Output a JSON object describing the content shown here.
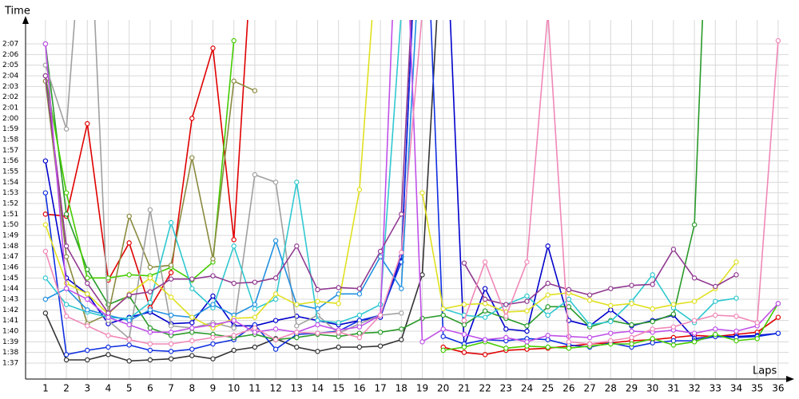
{
  "chart_data": {
    "type": "line",
    "y_label": "Time",
    "x_label": "Laps",
    "x": [
      1,
      2,
      3,
      4,
      5,
      6,
      7,
      8,
      9,
      10,
      11,
      12,
      13,
      14,
      15,
      16,
      17,
      18,
      19,
      20,
      21,
      22,
      23,
      24,
      25,
      26,
      27,
      28,
      29,
      30,
      31,
      32,
      33,
      34,
      35,
      36
    ],
    "xlim": [
      0.05,
      36.5
    ],
    "xticks": [
      1,
      2,
      3,
      4,
      5,
      6,
      7,
      8,
      9,
      10,
      11,
      12,
      13,
      14,
      15,
      16,
      17,
      18,
      19,
      20,
      21,
      22,
      23,
      24,
      25,
      26,
      27,
      28,
      29,
      30,
      31,
      32,
      33,
      34,
      35,
      36
    ],
    "ylim": [
      95.5,
      129.25
    ],
    "yticks": [
      {
        "value": 97,
        "label": "1:37"
      },
      {
        "value": 98,
        "label": "1:38"
      },
      {
        "value": 99,
        "label": "1:39"
      },
      {
        "value": 100,
        "label": "1:40"
      },
      {
        "value": 101,
        "label": "1:41"
      },
      {
        "value": 102,
        "label": "1:42"
      },
      {
        "value": 103,
        "label": "1:43"
      },
      {
        "value": 104,
        "label": "1:44"
      },
      {
        "value": 105,
        "label": "1:45"
      },
      {
        "value": 106,
        "label": "1:46"
      },
      {
        "value": 107,
        "label": "1:47"
      },
      {
        "value": 108,
        "label": "1:48"
      },
      {
        "value": 109,
        "label": "1:49"
      },
      {
        "value": 110,
        "label": "1:50"
      },
      {
        "value": 111,
        "label": "1:51"
      },
      {
        "value": 112,
        "label": "1:52"
      },
      {
        "value": 113,
        "label": "1:53"
      },
      {
        "value": 114,
        "label": "1:54"
      },
      {
        "value": 115,
        "label": "1:55"
      },
      {
        "value": 116,
        "label": "1:56"
      },
      {
        "value": 117,
        "label": "1:57"
      },
      {
        "value": 118,
        "label": "1:58"
      },
      {
        "value": 119,
        "label": "1:59"
      },
      {
        "value": 120,
        "label": "2:00"
      },
      {
        "value": 121,
        "label": "2:01"
      },
      {
        "value": 122,
        "label": "2:02"
      },
      {
        "value": 123,
        "label": "2:03"
      },
      {
        "value": 124,
        "label": "2:04"
      },
      {
        "value": 125,
        "label": "2:05"
      },
      {
        "value": 126,
        "label": "2:06"
      },
      {
        "value": 127,
        "label": "2:07"
      }
    ],
    "grid": true,
    "series": [
      {
        "color": "#e00000",
        "values": [
          111,
          110.8,
          119.5,
          104.8,
          108.3,
          102.2,
          105.5,
          120,
          126.6,
          108.6,
          140,
          null,
          null,
          null,
          null,
          null,
          null,
          null,
          null,
          98.5,
          98,
          97.8,
          98.2,
          98.3,
          98.4,
          98.6,
          98.8,
          98.9,
          99.1,
          99.2,
          99.4,
          99.6,
          99.5,
          99.7,
          99.9,
          101.3
        ]
      },
      {
        "color": "#0000cc",
        "values": [
          116,
          105,
          103.5,
          100.7,
          101.3,
          101.8,
          100.7,
          100.8,
          103.3,
          100.5,
          100.5,
          101,
          101.4,
          101,
          100.6,
          101,
          101.3,
          107,
          150,
          145,
          98.6,
          104,
          100.2,
          100,
          108,
          101,
          100.5,
          102,
          100.5,
          101,
          101.5,
          99.3,
          99.5,
          99.5,
          99.6,
          99.8
        ]
      },
      {
        "color": "#333333",
        "values": [
          101.7,
          97.3,
          97.3,
          97.8,
          97.2,
          97.3,
          97.4,
          97.7,
          97.4,
          98.2,
          98.5,
          99.3,
          98.5,
          98.1,
          98.5,
          98.5,
          98.6,
          99.2,
          105.3,
          140,
          null,
          null,
          null,
          null,
          null,
          null,
          null,
          null,
          null,
          null,
          null,
          null,
          null,
          null,
          null,
          null
        ]
      },
      {
        "color": "#1030e0",
        "values": [
          113,
          97.8,
          98.2,
          98.5,
          98.7,
          98.2,
          98.1,
          98.3,
          98.8,
          99.2,
          100.6,
          98.3,
          99.7,
          99.8,
          100,
          101,
          101.5,
          106.5,
          150,
          99.5,
          98.8,
          99.2,
          99.1,
          99.3,
          99.2,
          98.7,
          98.5,
          98.9,
          98.5,
          98.9,
          99.1,
          99.1,
          99.5,
          99.4,
          99.5,
          99.8
        ]
      },
      {
        "color": "#2a9a2a",
        "values": [
          127,
          111,
          105.8,
          102.5,
          103.3,
          100.3,
          99.6,
          99.9,
          99.7,
          99.4,
          99.7,
          99.2,
          99.4,
          99.7,
          99.5,
          99.8,
          99.9,
          100.2,
          101.2,
          101.5,
          100.6,
          101.9,
          101.2,
          100.5,
          102.3,
          102.3,
          100.4,
          101,
          100.6,
          100.9,
          101.6,
          110,
          160,
          null,
          null,
          null
        ]
      },
      {
        "color": "#44cc00",
        "values": [
          124,
          113,
          105,
          105,
          105.3,
          105.2,
          106,
          104.8,
          106.5,
          127.3,
          null,
          null,
          null,
          null,
          null,
          null,
          null,
          null,
          null,
          98.2,
          98.5,
          99,
          98.4,
          98.6,
          98.5,
          98.4,
          98.6,
          98.8,
          98.8,
          99.3,
          98.7,
          99,
          99.7,
          99.1,
          99.3,
          102.6
        ]
      },
      {
        "color": "#8a8a40",
        "values": [
          123.5,
          107,
          100.7,
          101.6,
          110.8,
          106,
          106.2,
          116.3,
          106.8,
          123.5,
          122.6,
          null,
          null,
          null,
          null,
          null,
          null,
          null,
          null,
          null,
          null,
          null,
          null,
          null,
          null,
          null,
          null,
          null,
          null,
          null,
          null,
          null,
          null,
          null,
          null,
          null
        ]
      },
      {
        "color": "#a0a0a0",
        "values": [
          125,
          119,
          145,
          101,
          99.3,
          111.4,
          100.5,
          100.3,
          100.8,
          100.3,
          114.7,
          114,
          100.5,
          101.5,
          99.8,
          100.7,
          101.5,
          101.7,
          null,
          null,
          null,
          null,
          null,
          null,
          null,
          null,
          null,
          null,
          null,
          null,
          null,
          null,
          null,
          null,
          null,
          null
        ]
      },
      {
        "color": "#30c8d0",
        "values": [
          105,
          102.5,
          101.8,
          101.3,
          101.2,
          102.7,
          110.2,
          104,
          102.2,
          108,
          102.1,
          103,
          114,
          101,
          100.8,
          101.5,
          102.5,
          130,
          null,
          102.1,
          101.5,
          101.3,
          102.5,
          103.3,
          101.5,
          103,
          100.6,
          100.9,
          102.8,
          105.3,
          102.2,
          100.8,
          102.8,
          103.1,
          null,
          null
        ]
      },
      {
        "color": "#2090e0",
        "values": [
          103,
          104,
          102,
          101.5,
          101,
          102,
          101.5,
          101.3,
          102.5,
          101.5,
          102.5,
          108.5,
          102.5,
          102.1,
          103.5,
          103.5,
          107,
          104,
          140,
          null,
          null,
          null,
          null,
          null,
          null,
          null,
          null,
          null,
          null,
          null,
          null,
          null,
          null,
          null,
          null,
          null
        ]
      },
      {
        "color": "#e0e020",
        "values": [
          110,
          104.5,
          103.5,
          101.6,
          103.5,
          105,
          103.2,
          101.3,
          100.3,
          101.2,
          101.3,
          103.5,
          102.5,
          102.8,
          102.6,
          113.3,
          140,
          null,
          113,
          102.1,
          102.5,
          102.6,
          101.8,
          101.9,
          103.4,
          103.6,
          102.9,
          102.4,
          102.6,
          102.1,
          102.5,
          102.8,
          104,
          106.5,
          null,
          null
        ]
      },
      {
        "color": "#903a90",
        "values": [
          124,
          108,
          104.5,
          101.7,
          103.4,
          103.7,
          104.9,
          104.9,
          105.2,
          104.5,
          104.6,
          105,
          108,
          103.9,
          104.1,
          104,
          107.5,
          111,
          150,
          null,
          106.4,
          103,
          102.5,
          102.8,
          104.5,
          103.9,
          103.4,
          104,
          104.3,
          104.4,
          107.7,
          105,
          104.2,
          105.3,
          null,
          null
        ]
      },
      {
        "color": "#c050e8",
        "values": [
          127,
          104,
          103,
          101.3,
          100.6,
          99.9,
          99.9,
          100.3,
          100.6,
          101,
          99.9,
          100.2,
          99.9,
          100.6,
          100.1,
          100.4,
          101.5,
          150,
          99,
          100.2,
          99.7,
          99.2,
          99.4,
          99,
          99.6,
          99.5,
          99.4,
          99.8,
          100,
          99.9,
          100.1,
          99.8,
          100.2,
          100,
          100.5,
          102.6
        ]
      },
      {
        "color": "#f088b8",
        "values": [
          107.5,
          101.4,
          100.5,
          99.6,
          99.2,
          98.8,
          98.8,
          99.1,
          99.4,
          99.6,
          100.3,
          99.2,
          99.9,
          99.8,
          99.9,
          99.4,
          101.5,
          107.4,
          130,
          null,
          101,
          106.5,
          101.4,
          106.5,
          130,
          99,
          98.8,
          99.1,
          99.4,
          100.2,
          100.4,
          101,
          101.5,
          101.4,
          100.8,
          127.3
        ]
      }
    ]
  }
}
